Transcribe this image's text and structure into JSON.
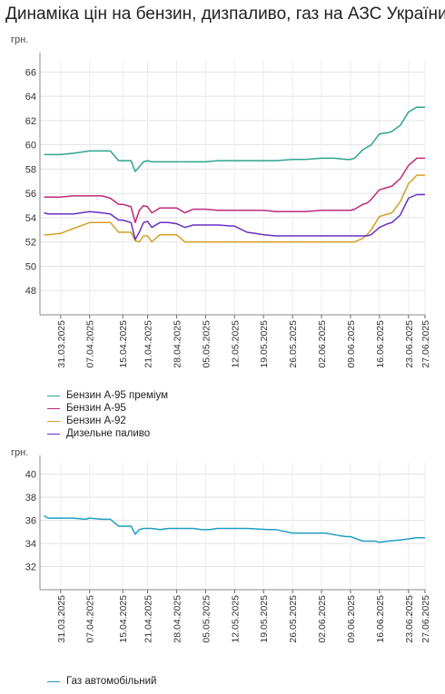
{
  "title": "Динаміка цін на бензин, дизпаливо, газ на АЗС України",
  "x_ticks": [
    "31.03.2025",
    "07.04.2025",
    "15.04.2025",
    "21.04.2025",
    "28.04.2025",
    "05.05.2025",
    "12.05.2025",
    "19.05.2025",
    "26.05.2025",
    "02.06.2025",
    "09.06.2025",
    "16.06.2025",
    "23.06.2025",
    "27.06.2025"
  ],
  "chart_data": [
    {
      "type": "line",
      "ylabel": "грн.",
      "ylim": [
        46,
        67
      ],
      "y_ticks": [
        48,
        50,
        52,
        54,
        56,
        58,
        60,
        62,
        64,
        66
      ],
      "grid": true,
      "legend_position": "below",
      "x": [
        "27.03.2025",
        "28.03.2025",
        "31.03.2025",
        "03.04.2025",
        "07.04.2025",
        "10.04.2025",
        "12.04.2025",
        "14.04.2025",
        "15.04.2025",
        "17.04.2025",
        "18.04.2025",
        "19.04.2025",
        "20.04.2025",
        "21.04.2025",
        "22.04.2025",
        "24.04.2025",
        "26.04.2025",
        "28.04.2025",
        "30.04.2025",
        "02.05.2025",
        "03.05.2025",
        "05.05.2025",
        "08.05.2025",
        "12.05.2025",
        "15.05.2025",
        "17.05.2025",
        "19.05.2025",
        "22.05.2025",
        "26.05.2025",
        "29.05.2025",
        "02.06.2025",
        "05.06.2025",
        "08.06.2025",
        "09.06.2025",
        "10.06.2025",
        "12.06.2025",
        "13.06.2025",
        "14.06.2025",
        "16.06.2025",
        "18.06.2025",
        "19.06.2025",
        "21.06.2025",
        "23.06.2025",
        "25.06.2025",
        "27.06.2025"
      ],
      "series": [
        {
          "name": "Бензин А-95 преміум",
          "color": "#2ca58d",
          "values": [
            59.2,
            59.2,
            59.2,
            59.3,
            59.5,
            59.5,
            59.5,
            58.7,
            58.7,
            58.7,
            57.8,
            58.2,
            58.6,
            58.7,
            58.6,
            58.6,
            58.6,
            58.6,
            58.6,
            58.6,
            58.6,
            58.6,
            58.7,
            58.7,
            58.7,
            58.7,
            58.7,
            58.7,
            58.8,
            58.8,
            58.9,
            58.9,
            58.8,
            58.8,
            58.9,
            59.6,
            59.8,
            60.0,
            60.9,
            61.0,
            61.1,
            61.6,
            62.7,
            63.1,
            63.1
          ]
        },
        {
          "name": "Бензин А-95",
          "color": "#c0287a",
          "values": [
            55.7,
            55.7,
            55.7,
            55.8,
            55.8,
            55.8,
            55.6,
            55.1,
            55.1,
            54.9,
            53.6,
            54.6,
            55.0,
            54.9,
            54.4,
            54.8,
            54.8,
            54.8,
            54.4,
            54.7,
            54.7,
            54.7,
            54.6,
            54.6,
            54.6,
            54.6,
            54.6,
            54.5,
            54.5,
            54.5,
            54.6,
            54.6,
            54.6,
            54.6,
            54.7,
            55.1,
            55.2,
            55.5,
            56.3,
            56.5,
            56.6,
            57.2,
            58.3,
            58.9,
            58.9
          ]
        },
        {
          "name": "Бензин А-92",
          "color": "#d4a024",
          "values": [
            52.6,
            52.6,
            52.7,
            53.1,
            53.6,
            53.6,
            53.6,
            52.8,
            52.8,
            52.8,
            52.1,
            52.0,
            52.5,
            52.5,
            52.0,
            52.6,
            52.6,
            52.6,
            52.0,
            52.0,
            52.0,
            52.0,
            52.0,
            52.0,
            52.0,
            52.0,
            52.0,
            52.0,
            52.0,
            52.0,
            52.0,
            52.0,
            52.0,
            52.0,
            52.0,
            52.3,
            52.6,
            53.0,
            54.1,
            54.3,
            54.4,
            55.3,
            56.8,
            57.5,
            57.5
          ]
        },
        {
          "name": "Дизельне паливо",
          "color": "#6a2fc4",
          "values": [
            54.4,
            54.3,
            54.3,
            54.3,
            54.5,
            54.4,
            54.3,
            53.8,
            53.8,
            53.6,
            52.2,
            52.8,
            53.6,
            53.7,
            53.2,
            53.6,
            53.6,
            53.5,
            53.2,
            53.4,
            53.4,
            53.4,
            53.4,
            53.3,
            52.8,
            52.7,
            52.6,
            52.5,
            52.5,
            52.5,
            52.5,
            52.5,
            52.5,
            52.5,
            52.5,
            52.5,
            52.5,
            52.6,
            53.2,
            53.5,
            53.6,
            54.2,
            55.6,
            55.9,
            55.9
          ]
        }
      ]
    },
    {
      "type": "line",
      "ylabel": "грн.",
      "ylim": [
        30,
        41
      ],
      "y_ticks": [
        32,
        34,
        36,
        38,
        40
      ],
      "grid": true,
      "legend_position": "below",
      "x": [
        "27.03.2025",
        "28.03.2025",
        "31.03.2025",
        "03.04.2025",
        "06.04.2025",
        "07.04.2025",
        "10.04.2025",
        "12.04.2025",
        "14.04.2025",
        "15.04.2025",
        "17.04.2025",
        "18.04.2025",
        "19.04.2025",
        "20.04.2025",
        "22.04.2025",
        "24.04.2025",
        "26.04.2025",
        "28.04.2025",
        "02.05.2025",
        "04.05.2025",
        "06.05.2025",
        "08.05.2025",
        "12.05.2025",
        "15.05.2025",
        "20.05.2025",
        "22.05.2025",
        "26.05.2025",
        "29.05.2025",
        "01.06.2025",
        "03.06.2025",
        "06.06.2025",
        "08.06.2025",
        "09.06.2025",
        "12.06.2025",
        "15.06.2025",
        "16.06.2025",
        "18.06.2025",
        "21.06.2025",
        "23.06.2025",
        "25.06.2025",
        "27.06.2025"
      ],
      "series": [
        {
          "name": "Газ автомобільний",
          "color": "#1f9fc4",
          "values": [
            36.4,
            36.2,
            36.2,
            36.2,
            36.1,
            36.2,
            36.1,
            36.1,
            35.5,
            35.5,
            35.5,
            34.8,
            35.2,
            35.3,
            35.3,
            35.2,
            35.3,
            35.3,
            35.3,
            35.2,
            35.2,
            35.3,
            35.3,
            35.3,
            35.2,
            35.2,
            34.9,
            34.9,
            34.9,
            34.9,
            34.7,
            34.6,
            34.6,
            34.2,
            34.2,
            34.1,
            34.2,
            34.3,
            34.4,
            34.5,
            34.5
          ]
        }
      ]
    }
  ]
}
